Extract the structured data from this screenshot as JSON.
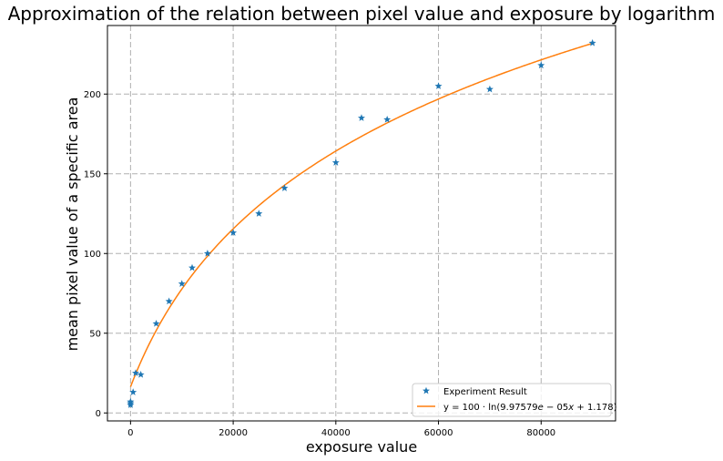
{
  "chart_data": {
    "type": "scatter",
    "title": "Approximation of the relation between pixel value and exposure by logarithm",
    "xlabel": "exposure value",
    "ylabel": "mean pixel value of a specific area",
    "xlim": [
      -4500,
      94500
    ],
    "ylim": [
      -5,
      243
    ],
    "xticks": [
      0,
      20000,
      40000,
      60000,
      80000
    ],
    "xtick_labels": [
      "0",
      "20000",
      "40000",
      "60000",
      "80000"
    ],
    "yticks": [
      0,
      50,
      100,
      150,
      200
    ],
    "ytick_labels": [
      "0",
      "50",
      "100",
      "150",
      "200"
    ],
    "grid": true,
    "legend_position": "lower right",
    "series": [
      {
        "name": "Experiment Result",
        "kind": "scatter",
        "marker": "star",
        "color": "#1f77b4",
        "points": [
          [
            0,
            5
          ],
          [
            0,
            6
          ],
          [
            0,
            7
          ],
          [
            500,
            13
          ],
          [
            1000,
            25
          ],
          [
            2000,
            24
          ],
          [
            5000,
            56
          ],
          [
            7500,
            70
          ],
          [
            10000,
            81
          ],
          [
            12000,
            91
          ],
          [
            15000,
            100
          ],
          [
            20000,
            113
          ],
          [
            25000,
            125
          ],
          [
            30000,
            141
          ],
          [
            40000,
            157
          ],
          [
            45000,
            185
          ],
          [
            50000,
            184
          ],
          [
            60000,
            205
          ],
          [
            70000,
            203
          ],
          [
            80000,
            218
          ],
          [
            90000,
            232
          ]
        ]
      },
      {
        "name_prefix": "y = 100 · ln(9.97579",
        "name_suffix": " − 05",
        "name_x": "x",
        "name_tail": " + 1.178)",
        "kind": "line",
        "color": "#ff7f0e",
        "formula": {
          "scale": 100,
          "a": 9.97579e-05,
          "b": 1.178
        },
        "x_range": [
          0,
          90000
        ]
      }
    ]
  }
}
